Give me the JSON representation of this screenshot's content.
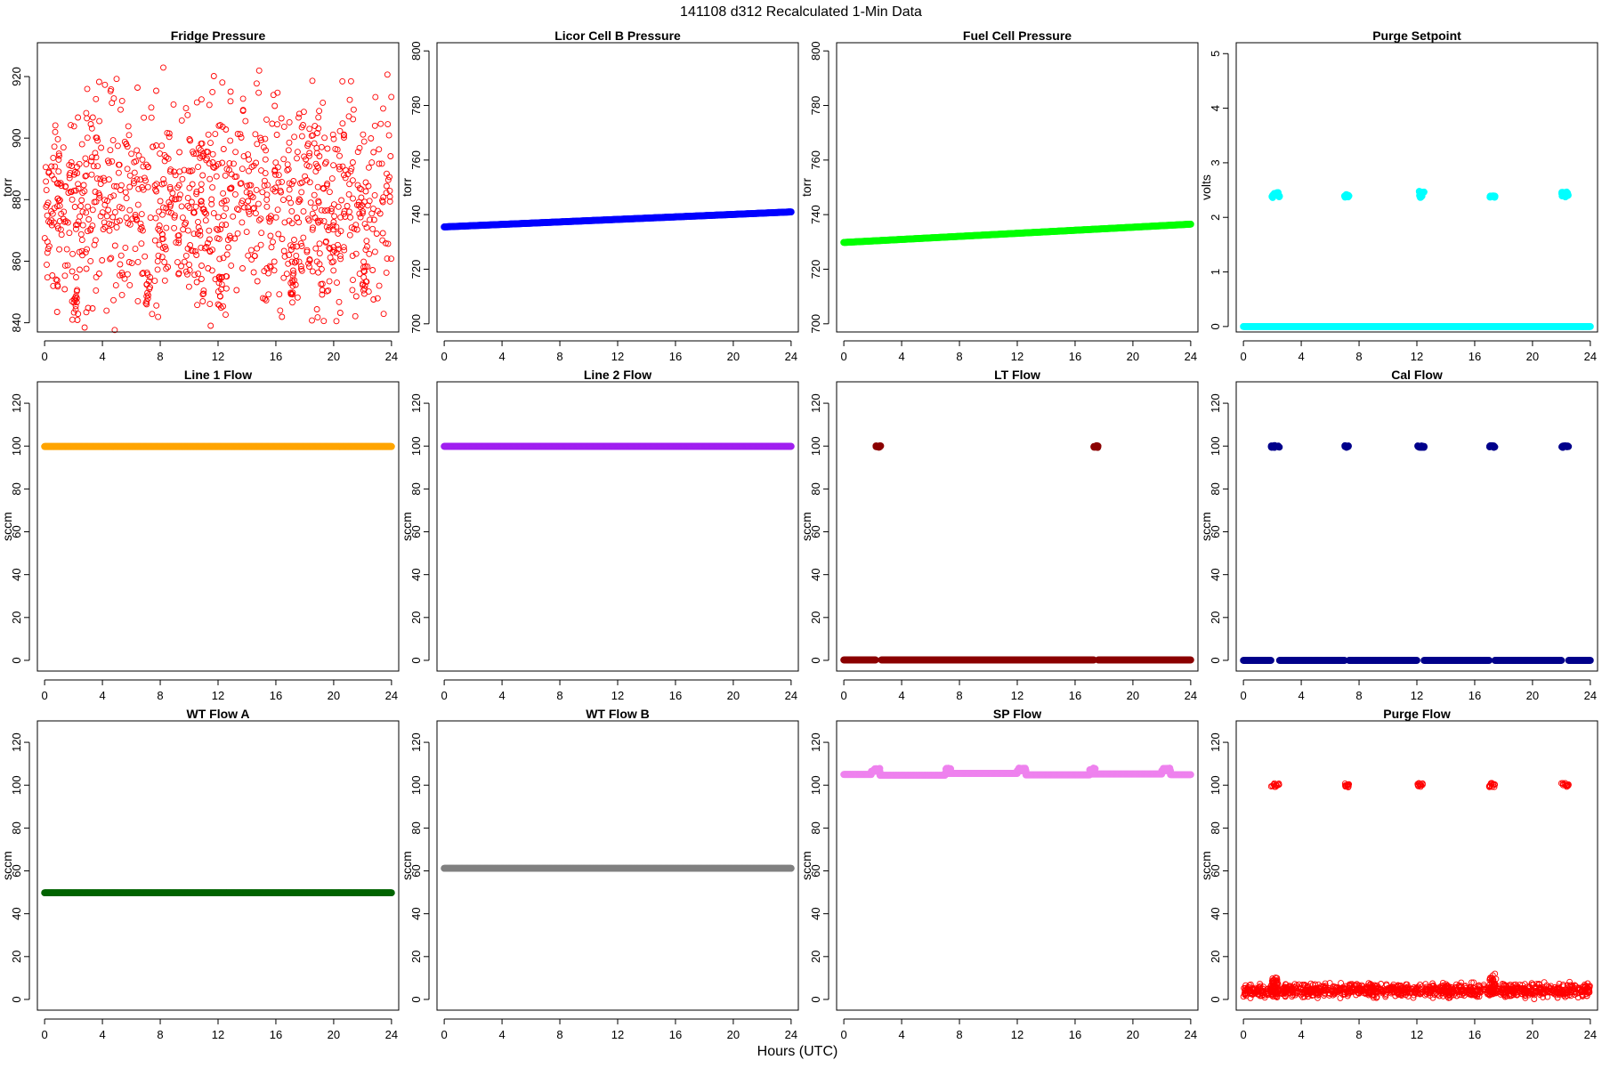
{
  "figure": {
    "title": "141108   d312   Recalculated 1-Min Data",
    "xlabel": "Hours (UTC)"
  },
  "chart_data": [
    {
      "type": "scatter",
      "title": "Fridge Pressure",
      "ylabel": "torr",
      "xlim": [
        -0.5,
        24.5
      ],
      "ylim": [
        837,
        931
      ],
      "xticks": [
        0,
        4,
        8,
        12,
        16,
        20,
        24
      ],
      "yticks": [
        840,
        860,
        880,
        900,
        920
      ],
      "color": "#ff0000",
      "marker": "open",
      "series": [
        {
          "kind": "noise",
          "segments": [
            {
              "x0": 0,
              "x1": 24,
              "center": 878,
              "spread": 50,
              "count": 1000,
              "seed": 11
            }
          ]
        },
        {
          "kind": "clusters",
          "clusters": [
            {
              "x0": 1.9,
              "x1": 2.4,
              "y0": 840,
              "y1": 852
            },
            {
              "x0": 7.0,
              "x1": 7.3,
              "y0": 846,
              "y1": 858
            },
            {
              "x0": 12.0,
              "x1": 12.3,
              "y0": 842,
              "y1": 855
            },
            {
              "x0": 17.0,
              "x1": 17.3,
              "y0": 846,
              "y1": 858
            },
            {
              "x0": 22.0,
              "x1": 22.3,
              "y0": 849,
              "y1": 860
            }
          ]
        }
      ]
    },
    {
      "type": "scatter",
      "title": "Licor Cell B Pressure",
      "ylabel": "torr",
      "xlim": [
        -0.5,
        24.5
      ],
      "ylim": [
        697,
        803
      ],
      "xticks": [
        0,
        4,
        8,
        12,
        16,
        20,
        24
      ],
      "yticks": [
        700,
        720,
        740,
        760,
        780,
        800
      ],
      "color": "#0000ff",
      "marker": "filled",
      "series": [
        {
          "kind": "line",
          "segments": [
            {
              "x0": 0,
              "x1": 24,
              "y0": 735.5,
              "y1": 741.0
            }
          ]
        }
      ]
    },
    {
      "type": "scatter",
      "title": "Fuel Cell Pressure",
      "ylabel": "torr",
      "xlim": [
        -0.5,
        24.5
      ],
      "ylim": [
        697,
        803
      ],
      "xticks": [
        0,
        4,
        8,
        12,
        16,
        20,
        24
      ],
      "yticks": [
        700,
        720,
        740,
        760,
        780,
        800
      ],
      "color": "#00ff00",
      "marker": "filled",
      "series": [
        {
          "kind": "line",
          "segments": [
            {
              "x0": 0,
              "x1": 24,
              "y0": 729.8,
              "y1": 736.5
            }
          ]
        }
      ]
    },
    {
      "type": "scatter",
      "title": "Purge Setpoint",
      "ylabel": "volts",
      "xlim": [
        -0.5,
        24.5
      ],
      "ylim": [
        -0.1,
        5.2
      ],
      "xticks": [
        0,
        4,
        8,
        12,
        16,
        20,
        24
      ],
      "yticks": [
        0,
        1,
        2,
        3,
        4,
        5
      ],
      "color": "#00ffff",
      "marker": "filled",
      "series": [
        {
          "kind": "line",
          "segments": [
            {
              "x0": 0,
              "x1": 24,
              "y0": 0,
              "y1": 0
            }
          ]
        },
        {
          "kind": "clusters",
          "clusters": [
            {
              "x0": 1.9,
              "x1": 2.5,
              "y0": 2.36,
              "y1": 2.46
            },
            {
              "x0": 7.0,
              "x1": 7.3,
              "y0": 2.37,
              "y1": 2.42
            },
            {
              "x0": 12.0,
              "x1": 12.5,
              "y0": 2.36,
              "y1": 2.48
            },
            {
              "x0": 17.0,
              "x1": 17.4,
              "y0": 2.36,
              "y1": 2.4
            },
            {
              "x0": 22.0,
              "x1": 22.5,
              "y0": 2.37,
              "y1": 2.47
            }
          ]
        }
      ]
    },
    {
      "type": "scatter",
      "title": "Line 1 Flow",
      "ylabel": "sccm",
      "xlim": [
        -0.5,
        24.5
      ],
      "ylim": [
        -5,
        130
      ],
      "xticks": [
        0,
        4,
        8,
        12,
        16,
        20,
        24
      ],
      "yticks": [
        0,
        20,
        40,
        60,
        80,
        100,
        120
      ],
      "color": "#ffa500",
      "marker": "filled",
      "series": [
        {
          "kind": "line",
          "segments": [
            {
              "x0": 0,
              "x1": 24,
              "y0": 99.8,
              "y1": 99.8
            }
          ]
        }
      ]
    },
    {
      "type": "scatter",
      "title": "Line 2 Flow",
      "ylabel": "sccm",
      "xlim": [
        -0.5,
        24.5
      ],
      "ylim": [
        -5,
        130
      ],
      "xticks": [
        0,
        4,
        8,
        12,
        16,
        20,
        24
      ],
      "yticks": [
        0,
        20,
        40,
        60,
        80,
        100,
        120
      ],
      "color": "#a020f0",
      "marker": "filled",
      "series": [
        {
          "kind": "line",
          "segments": [
            {
              "x0": 0,
              "x1": 24,
              "y0": 99.9,
              "y1": 99.9
            }
          ]
        }
      ]
    },
    {
      "type": "scatter",
      "title": "LT Flow",
      "ylabel": "sccm",
      "xlim": [
        -0.5,
        24.5
      ],
      "ylim": [
        -5,
        130
      ],
      "xticks": [
        0,
        4,
        8,
        12,
        16,
        20,
        24
      ],
      "yticks": [
        0,
        20,
        40,
        60,
        80,
        100,
        120
      ],
      "color": "#8b0000",
      "marker": "filled",
      "series": [
        {
          "kind": "line",
          "segments": [
            {
              "x0": 0,
              "x1": 2.2,
              "y0": 0.2,
              "y1": 0.2
            },
            {
              "x0": 2.6,
              "x1": 17.3,
              "y0": 0.2,
              "y1": 0.2
            },
            {
              "x0": 17.6,
              "x1": 24,
              "y0": 0.2,
              "y1": 0.2
            }
          ]
        },
        {
          "kind": "clusters",
          "clusters": [
            {
              "x0": 2.2,
              "x1": 2.6,
              "y0": 99.4,
              "y1": 100.2
            },
            {
              "x0": 17.3,
              "x1": 17.6,
              "y0": 99.4,
              "y1": 100.2
            }
          ]
        }
      ]
    },
    {
      "type": "scatter",
      "title": "Cal Flow",
      "ylabel": "sccm",
      "xlim": [
        -0.5,
        24.5
      ],
      "ylim": [
        -5,
        130
      ],
      "xticks": [
        0,
        4,
        8,
        12,
        16,
        20,
        24
      ],
      "yticks": [
        0,
        20,
        40,
        60,
        80,
        100,
        120
      ],
      "color": "#00008b",
      "marker": "filled",
      "series": [
        {
          "kind": "line",
          "segments": [
            {
              "x0": 0,
              "x1": 1.9,
              "y0": 0,
              "y1": 0
            },
            {
              "x0": 2.5,
              "x1": 7.0,
              "y0": 0,
              "y1": 0
            },
            {
              "x0": 7.3,
              "x1": 12.0,
              "y0": 0,
              "y1": 0
            },
            {
              "x0": 12.5,
              "x1": 17.0,
              "y0": 0,
              "y1": 0
            },
            {
              "x0": 17.4,
              "x1": 22.0,
              "y0": 0,
              "y1": 0
            },
            {
              "x0": 22.5,
              "x1": 24,
              "y0": 0,
              "y1": 0
            }
          ]
        },
        {
          "kind": "clusters",
          "clusters": [
            {
              "x0": 1.9,
              "x1": 2.5,
              "y0": 99.4,
              "y1": 100.2
            },
            {
              "x0": 7.0,
              "x1": 7.3,
              "y0": 99.4,
              "y1": 100.2
            },
            {
              "x0": 12.0,
              "x1": 12.5,
              "y0": 99.4,
              "y1": 100.2
            },
            {
              "x0": 17.0,
              "x1": 17.4,
              "y0": 99.4,
              "y1": 100.2
            },
            {
              "x0": 22.0,
              "x1": 22.5,
              "y0": 99.4,
              "y1": 100.2
            }
          ]
        }
      ]
    },
    {
      "type": "scatter",
      "title": "WT Flow A",
      "ylabel": "sccm",
      "xlim": [
        -0.5,
        24.5
      ],
      "ylim": [
        -5,
        130
      ],
      "xticks": [
        0,
        4,
        8,
        12,
        16,
        20,
        24
      ],
      "yticks": [
        0,
        20,
        40,
        60,
        80,
        100,
        120
      ],
      "color": "#006400",
      "marker": "filled",
      "series": [
        {
          "kind": "line",
          "segments": [
            {
              "x0": 0,
              "x1": 24,
              "y0": 49.8,
              "y1": 49.8
            }
          ]
        }
      ]
    },
    {
      "type": "scatter",
      "title": "WT Flow B",
      "ylabel": "sccm",
      "xlim": [
        -0.5,
        24.5
      ],
      "ylim": [
        -5,
        130
      ],
      "xticks": [
        0,
        4,
        8,
        12,
        16,
        20,
        24
      ],
      "yticks": [
        0,
        20,
        40,
        60,
        80,
        100,
        120
      ],
      "color": "#808080",
      "marker": "filled",
      "series": [
        {
          "kind": "line",
          "segments": [
            {
              "x0": 0,
              "x1": 24,
              "y0": 61.2,
              "y1": 61.2
            }
          ]
        }
      ]
    },
    {
      "type": "scatter",
      "title": "SP Flow",
      "ylabel": "sccm",
      "xlim": [
        -0.5,
        24.5
      ],
      "ylim": [
        -5,
        130
      ],
      "xticks": [
        0,
        4,
        8,
        12,
        16,
        20,
        24
      ],
      "yticks": [
        0,
        20,
        40,
        60,
        80,
        100,
        120
      ],
      "color": "#ee82ee",
      "marker": "filled",
      "series": [
        {
          "kind": "line",
          "segments": [
            {
              "x0": 0,
              "x1": 1.9,
              "y0": 105.0,
              "y1": 105.0
            },
            {
              "x0": 1.9,
              "x1": 2.5,
              "y0": 106.5,
              "y1": 106.5
            },
            {
              "x0": 2.5,
              "x1": 7.0,
              "y0": 104.6,
              "y1": 104.6
            },
            {
              "x0": 7.0,
              "x1": 12.0,
              "y0": 105.5,
              "y1": 105.5
            },
            {
              "x0": 12.0,
              "x1": 12.6,
              "y0": 106.8,
              "y1": 106.8
            },
            {
              "x0": 12.6,
              "x1": 17.0,
              "y0": 104.8,
              "y1": 104.8
            },
            {
              "x0": 17.0,
              "x1": 22.0,
              "y0": 105.2,
              "y1": 105.2
            },
            {
              "x0": 22.0,
              "x1": 22.6,
              "y0": 106.8,
              "y1": 106.8
            },
            {
              "x0": 22.6,
              "x1": 24,
              "y0": 104.9,
              "y1": 104.9
            }
          ]
        },
        {
          "kind": "clusters",
          "clusters": [
            {
              "x0": 2.0,
              "x1": 2.5,
              "y0": 107.0,
              "y1": 108.0
            },
            {
              "x0": 7.0,
              "x1": 7.4,
              "y0": 107.0,
              "y1": 108.0
            },
            {
              "x0": 12.0,
              "x1": 12.6,
              "y0": 107.0,
              "y1": 108.0
            },
            {
              "x0": 17.0,
              "x1": 17.4,
              "y0": 107.0,
              "y1": 108.0
            },
            {
              "x0": 22.0,
              "x1": 22.6,
              "y0": 107.0,
              "y1": 108.0
            }
          ]
        }
      ]
    },
    {
      "type": "scatter",
      "title": "Purge Flow",
      "ylabel": "sccm",
      "xlim": [
        -0.5,
        24.5
      ],
      "ylim": [
        -5,
        130
      ],
      "xticks": [
        0,
        4,
        8,
        12,
        16,
        20,
        24
      ],
      "yticks": [
        0,
        20,
        40,
        60,
        80,
        100,
        120
      ],
      "color": "#ff0000",
      "marker": "open",
      "series": [
        {
          "kind": "noise",
          "segments": [
            {
              "x0": 0,
              "x1": 24,
              "center": 4.2,
              "spread": 4.5,
              "count": 1100,
              "seed": 23
            },
            {
              "x0": 1.9,
              "x1": 2.4,
              "center": 6.0,
              "spread": 8,
              "count": 40,
              "seed": 31
            },
            {
              "x0": 17.0,
              "x1": 17.5,
              "center": 6.5,
              "spread": 8,
              "count": 40,
              "seed": 37
            }
          ]
        },
        {
          "kind": "clusters",
          "clusters": [
            {
              "x0": 1.9,
              "x1": 2.5,
              "y0": 99.0,
              "y1": 101.0
            },
            {
              "x0": 7.0,
              "x1": 7.3,
              "y0": 99.0,
              "y1": 101.0
            },
            {
              "x0": 12.0,
              "x1": 12.4,
              "y0": 99.0,
              "y1": 101.0
            },
            {
              "x0": 17.0,
              "x1": 17.4,
              "y0": 99.0,
              "y1": 101.0
            },
            {
              "x0": 22.0,
              "x1": 22.5,
              "y0": 99.0,
              "y1": 101.0
            }
          ]
        }
      ]
    }
  ]
}
